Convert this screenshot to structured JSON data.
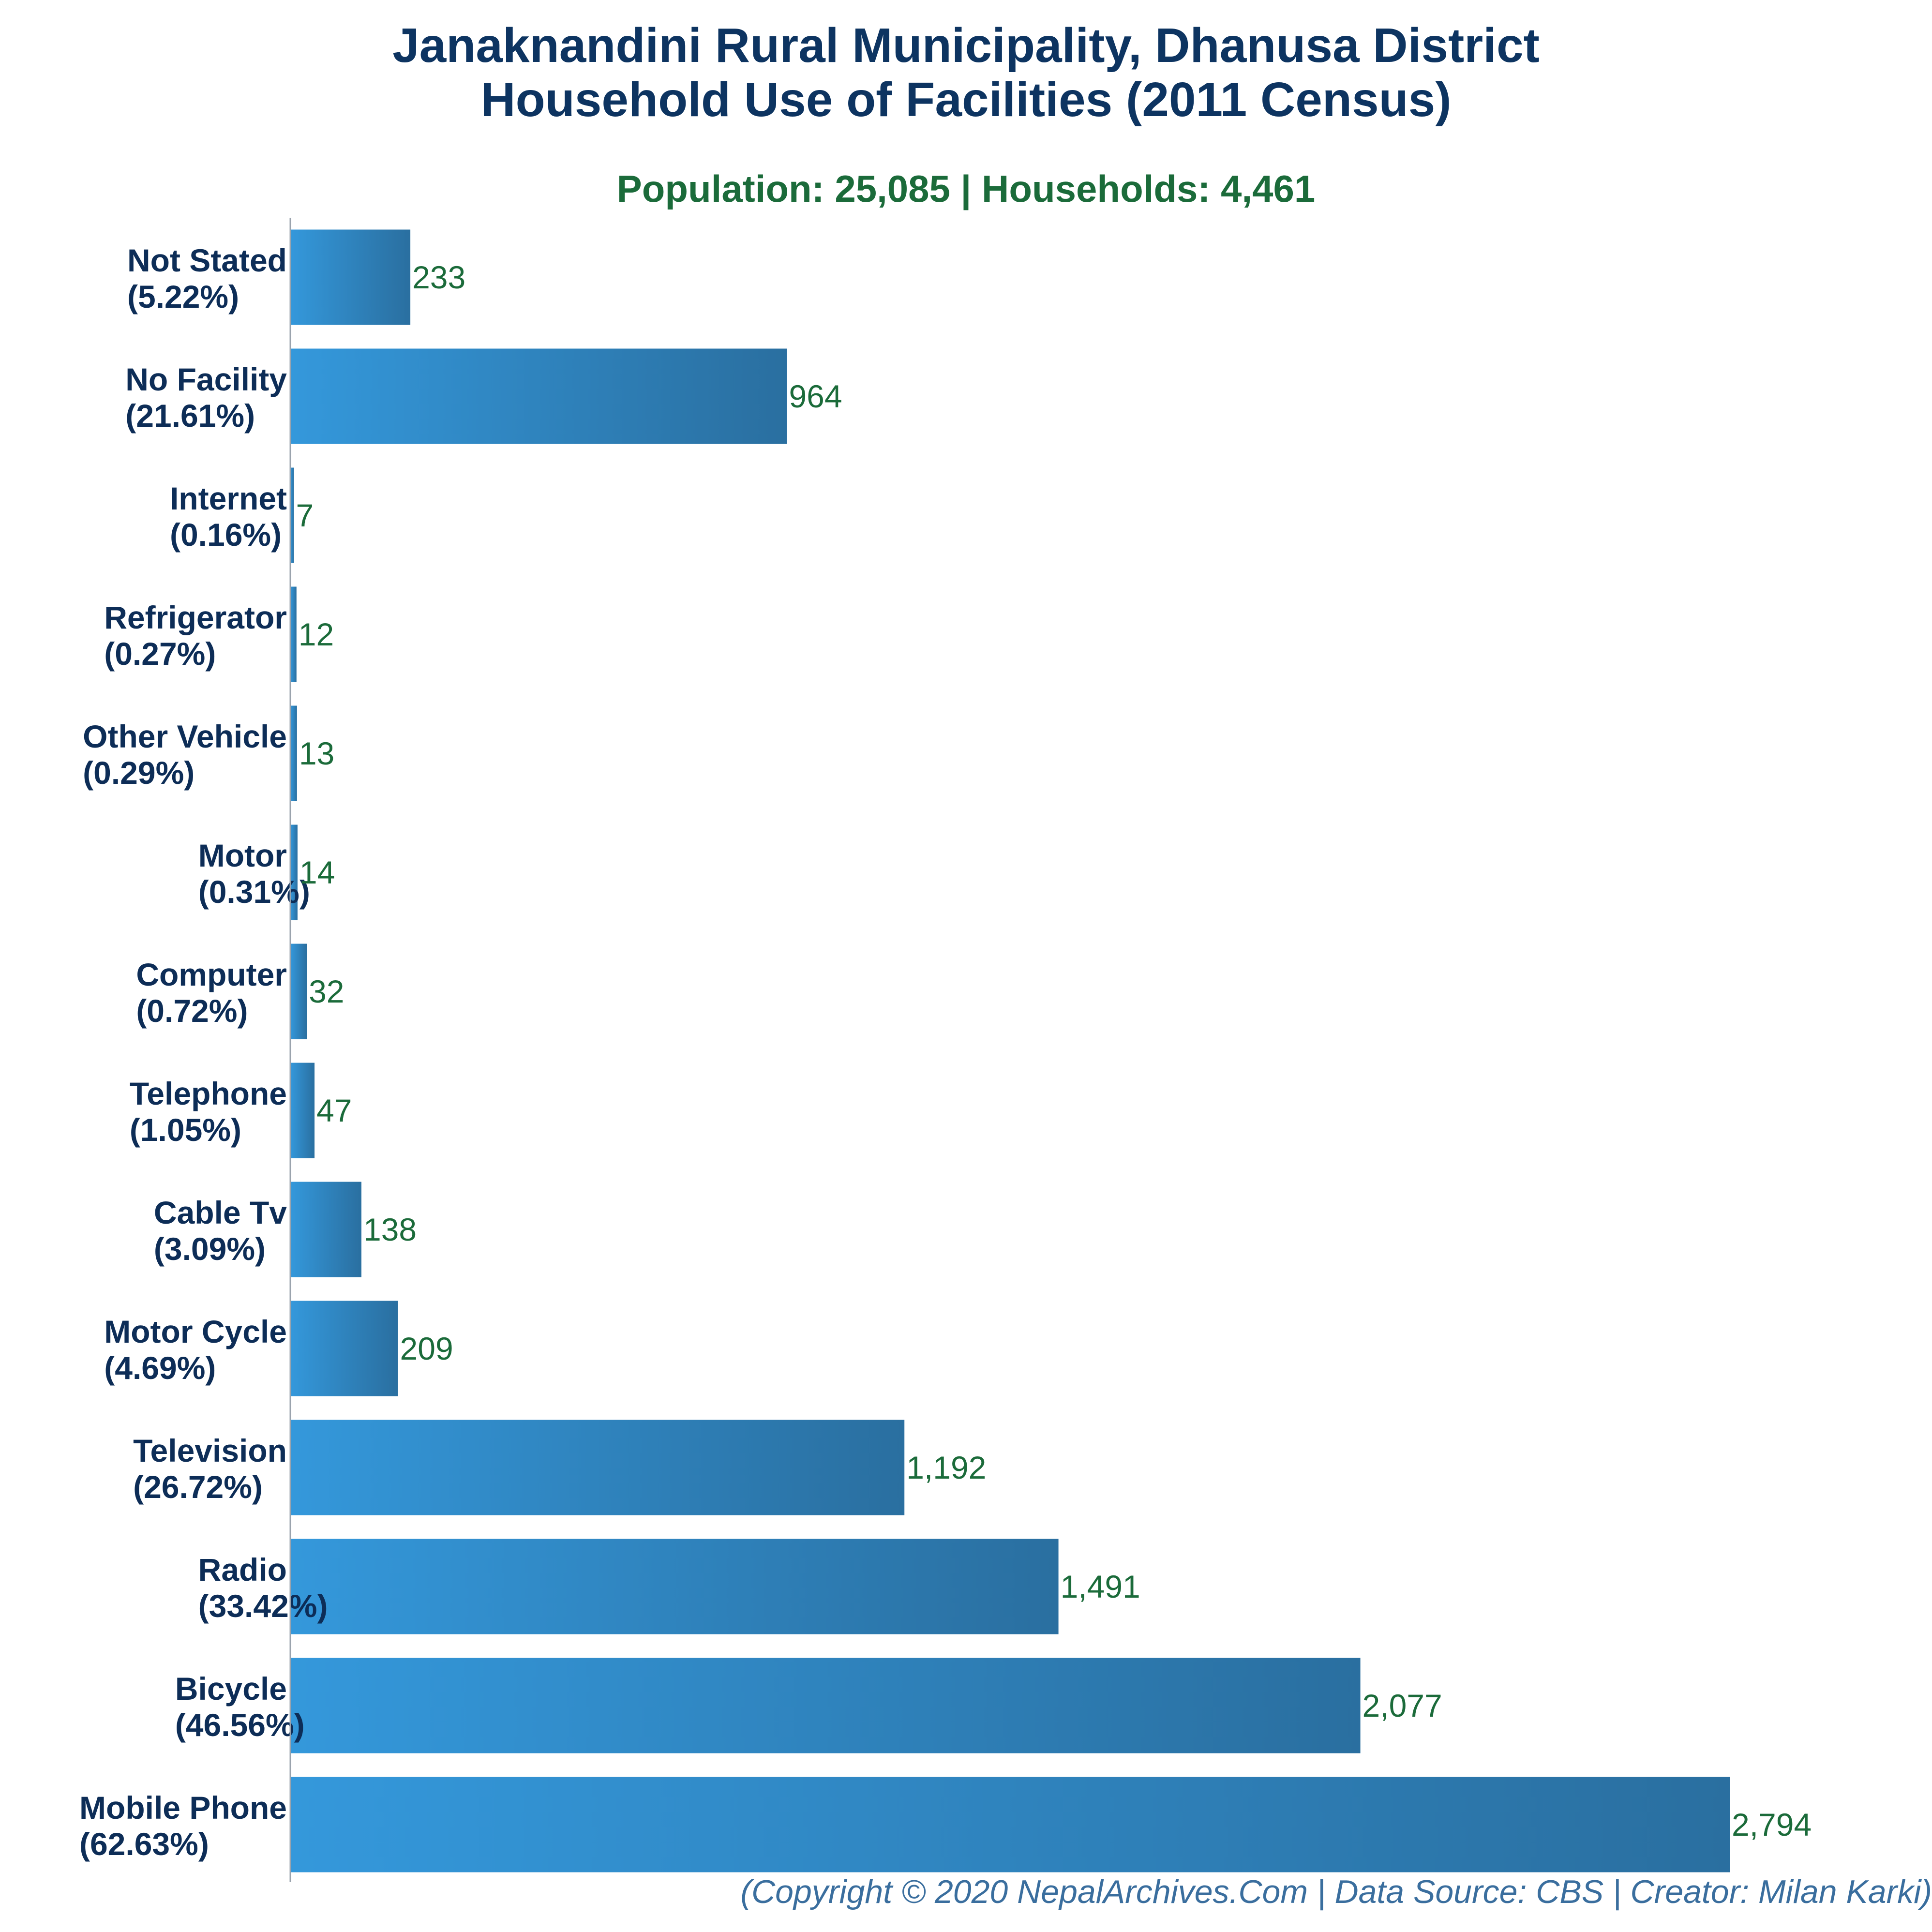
{
  "title_line1": "Janaknandini Rural Municipality, Dhanusa District",
  "title_line2": "Household Use of Facilities (2011 Census)",
  "subtitle": "Population: 25,085 | Households: 4,461",
  "footer": "(Copyright © 2020 NepalArchives.Com | Data Source: CBS | Creator: Milan Karki)",
  "colors": {
    "bar_light": "#3498db",
    "bar_dark": "#2a6fa0",
    "title": "#0d3461",
    "subtitle": "#1b6b3a",
    "value_label": "#1b6b3a",
    "footer": "#3a6e9e"
  },
  "chart_data": {
    "type": "bar",
    "orientation": "horizontal",
    "title": "Janaknandini Rural Municipality, Dhanusa District Household Use of Facilities (2011 Census)",
    "subtitle": "Population: 25,085 | Households: 4,461",
    "xlabel": "",
    "ylabel": "",
    "grid": false,
    "xlim": [
      0,
      2794
    ],
    "categories": [
      "Not Stated",
      "No Facility",
      "Internet",
      "Refrigerator",
      "Other Vehicle",
      "Motor",
      "Computer",
      "Telephone",
      "Cable Tv",
      "Motor Cycle",
      "Television",
      "Radio",
      "Bicycle",
      "Mobile Phone"
    ],
    "percent_labels": [
      "(5.22%)",
      "(21.61%)",
      "(0.16%)",
      "(0.27%)",
      "(0.29%)",
      "(0.31%)",
      "(0.72%)",
      "(1.05%)",
      "(3.09%)",
      "(4.69%)",
      "(26.72%)",
      "(33.42%)",
      "(46.56%)",
      "(62.63%)"
    ],
    "values": [
      233,
      964,
      7,
      12,
      13,
      14,
      32,
      47,
      138,
      209,
      1192,
      1491,
      2077,
      2794
    ],
    "value_labels": [
      "233",
      "964",
      "7",
      "12",
      "13",
      "14",
      "32",
      "47",
      "138",
      "209",
      "1,192",
      "1,491",
      "2,077",
      "2,794"
    ]
  }
}
